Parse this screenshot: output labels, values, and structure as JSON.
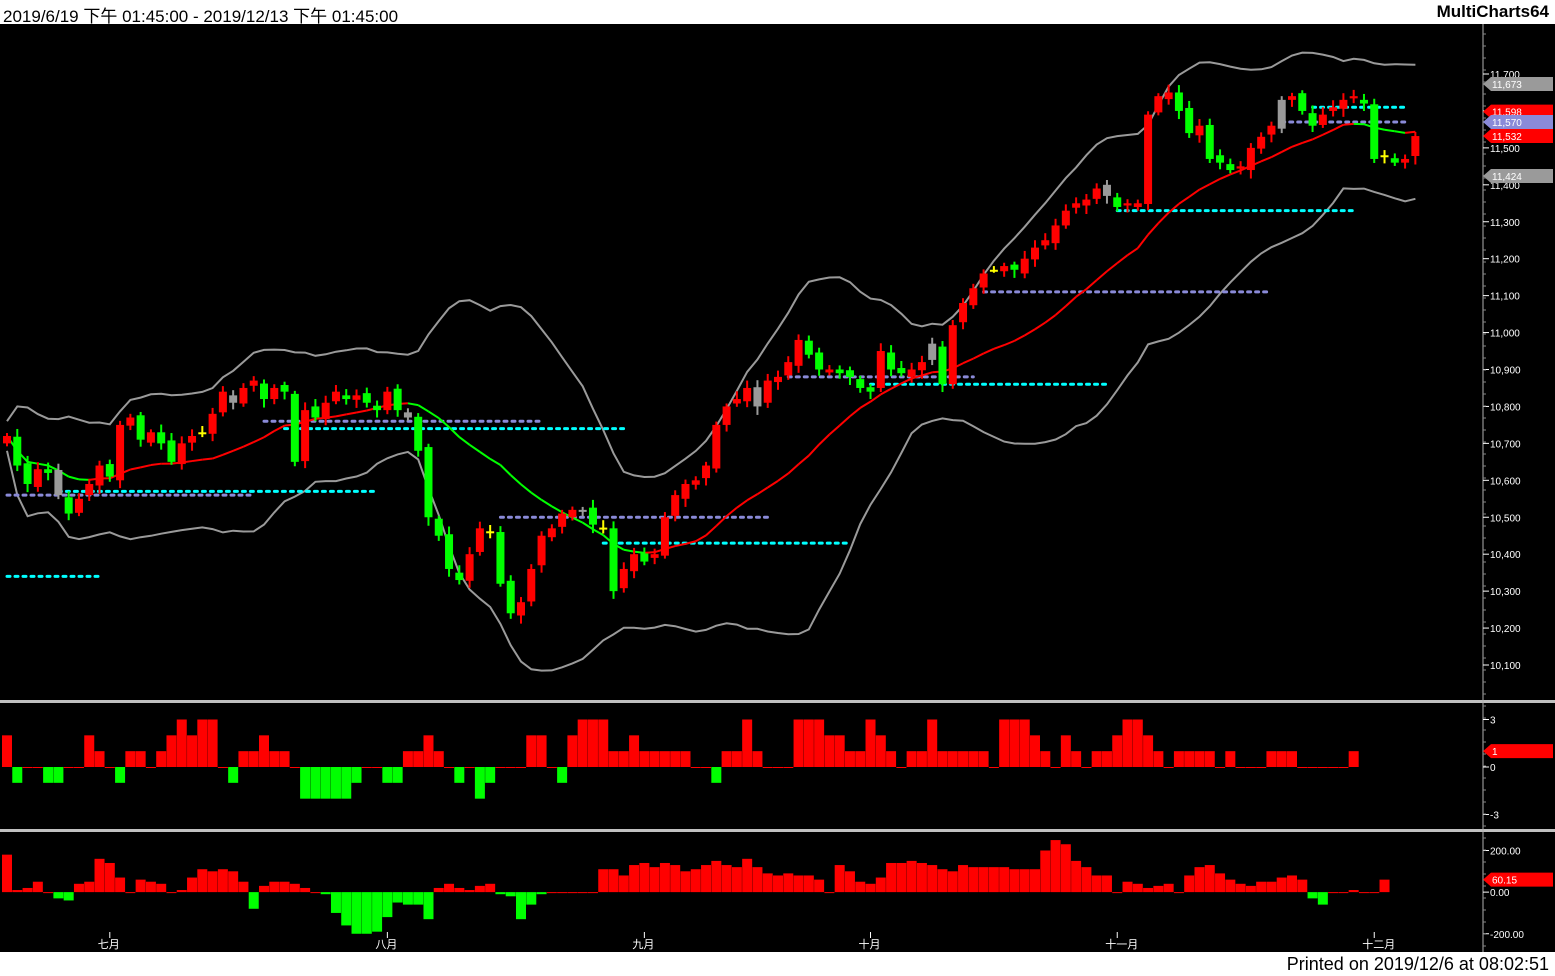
{
  "window": {
    "date_range": "2019/6/19 下午 01:45:00 - 2019/12/13 下午 01:45:00",
    "app_name": "MultiCharts64",
    "printed": "Printed on 2019/12/6 at 08:02:51"
  },
  "colors": {
    "background": "#000000",
    "up_candle": "#ff0000",
    "down_candle": "#00ff00",
    "neutral_candle": "#ffff00",
    "gray_candle": "#9a9a9a",
    "bollinger": "#9a9a9a",
    "moving_average_up": "#ff0000",
    "moving_average_down": "#00ff00",
    "support_dots": "#00ffff",
    "resistance_dots": "#8a8ad8"
  },
  "chart_data": [
    {
      "type": "candlestick",
      "x_months": [
        "七月",
        "八月",
        "九月",
        "十月",
        "十一月",
        "十二月"
      ],
      "y_ticks": [
        "11,700",
        "11,600",
        "11,500",
        "11,400",
        "11,300",
        "11,200",
        "11,100",
        "11,000",
        "10,900",
        "10,800",
        "10,700",
        "10,600",
        "10,500",
        "10,400",
        "10,300",
        "10,200",
        "10,100"
      ],
      "ylim": [
        10060,
        11800
      ],
      "price_flags": [
        {
          "value": "11,673",
          "price": 11673,
          "color": "#9a9a9a"
        },
        {
          "value": "11,598",
          "price": 11598,
          "color": "#ff0000"
        },
        {
          "value": "11,570",
          "price": 11570,
          "color": "#8a8ad8"
        },
        {
          "value": "11,532",
          "price": 11532,
          "color": "#ff0000"
        },
        {
          "value": "11,424",
          "price": 11424,
          "color": "#9a9a9a"
        }
      ],
      "closes": [
        10720,
        10640,
        10590,
        10630,
        10620,
        10560,
        10510,
        10550,
        10590,
        10640,
        10610,
        10750,
        10770,
        10710,
        10730,
        10700,
        10650,
        10700,
        10720,
        10730,
        10780,
        10840,
        10810,
        10850,
        10870,
        10820,
        10850,
        10840,
        10650,
        10790,
        10770,
        10810,
        10840,
        10820,
        10830,
        10810,
        10790,
        10840,
        10790,
        10770,
        10680,
        10500,
        10450,
        10360,
        10330,
        10400,
        10470,
        10460,
        10320,
        10240,
        10270,
        10360,
        10450,
        10470,
        10510,
        10520,
        10520,
        10480,
        10470,
        10300,
        10360,
        10400,
        10380,
        10400,
        10500,
        10560,
        10590,
        10600,
        10640,
        10750,
        10800,
        10820,
        10850,
        10800,
        10870,
        10880,
        10920,
        10980,
        10940,
        10900,
        10900,
        10890,
        10880,
        10850,
        10840,
        10950,
        10900,
        10890,
        10900,
        10920,
        10970,
        10860,
        11020,
        11080,
        11120,
        11160,
        11170,
        11180,
        11170,
        11200,
        11230,
        11250,
        11290,
        11330,
        11350,
        11360,
        11390,
        11370,
        11340,
        11350,
        11350,
        11590,
        11640,
        11650,
        11600,
        11540,
        11560,
        11470,
        11460,
        11440,
        11450,
        11500,
        11530,
        11560,
        11630,
        11640,
        11600,
        11560,
        11590,
        11610,
        11630,
        11640,
        11620,
        11470,
        11480,
        11460,
        11470,
        11532
      ],
      "indicators": [
        "Bollinger Bands",
        "Moving Average",
        "Support dots",
        "Resistance dots"
      ]
    },
    {
      "type": "bar",
      "name": "momentum",
      "y_ticks": [
        "3",
        "0",
        "-3"
      ],
      "ylim": [
        -3.6,
        3.6
      ],
      "current_value": "1",
      "values": [
        2,
        -1,
        0,
        0,
        -1,
        -1,
        0,
        0,
        2,
        1,
        0,
        -1,
        1,
        1,
        0,
        1,
        2,
        3,
        2,
        3,
        3,
        0,
        -1,
        1,
        1,
        2,
        1,
        1,
        0,
        -1,
        -2,
        -2,
        -2,
        -2,
        -1,
        0,
        0,
        -1,
        0,
        1,
        1,
        2,
        1,
        0,
        -1,
        0,
        -2,
        -1,
        0,
        0,
        0,
        2,
        2,
        0,
        -1,
        2,
        3,
        3,
        3,
        2,
        1,
        2,
        1,
        1,
        1,
        1,
        1,
        0,
        2,
        0,
        -1,
        1,
        1,
        3,
        0,
        0,
        0,
        0,
        3,
        3,
        3,
        2,
        2,
        1,
        1,
        3,
        2,
        1,
        0,
        1,
        1,
        3,
        1,
        1,
        1,
        1,
        1,
        0,
        3,
        3,
        3,
        2,
        1,
        0,
        2,
        1,
        0,
        1,
        1,
        2,
        3,
        3,
        2,
        1,
        0,
        1,
        1,
        1,
        1,
        0,
        1,
        0,
        0,
        0,
        1,
        1,
        1,
        0,
        0,
        0,
        0,
        1
      ],
      "data_values": [
        2,
        -1,
        0,
        0,
        -1,
        -1,
        0,
        0,
        2,
        1,
        0,
        -1,
        1,
        1,
        0,
        1,
        2,
        3,
        2,
        3,
        3,
        0,
        -1,
        1,
        1,
        2,
        1,
        1,
        0,
        -2,
        -2,
        -2,
        -2,
        -2,
        -1,
        0,
        0,
        -1,
        -1,
        1,
        1,
        2,
        1,
        0,
        -1,
        0,
        -2,
        -1,
        0,
        0,
        0,
        2,
        2,
        0,
        -1,
        2,
        3,
        3,
        3,
        1,
        1,
        2,
        1,
        1,
        1,
        1,
        1,
        0,
        0,
        -1,
        1,
        1,
        3,
        1,
        0,
        0,
        0,
        3,
        3,
        3,
        2,
        2,
        1,
        1,
        3,
        2,
        1,
        0,
        1,
        1,
        3,
        1,
        1,
        1,
        1,
        1,
        0,
        3,
        3,
        3,
        2,
        1,
        0,
        2,
        1,
        0,
        1,
        1,
        2,
        3,
        3,
        2,
        1,
        0,
        1,
        1,
        1,
        1,
        0,
        1,
        0,
        0,
        0,
        1,
        1,
        1,
        0,
        0,
        0,
        0,
        0,
        1
      ]
    },
    {
      "type": "bar",
      "name": "oscillator",
      "y_ticks": [
        "200.00",
        "0.00",
        "-200.00"
      ],
      "ylim": [
        -230,
        260
      ],
      "current_value": "60.15",
      "values": [
        180,
        10,
        20,
        50,
        0,
        -30,
        -40,
        40,
        50,
        160,
        140,
        70,
        0,
        60,
        50,
        40,
        0,
        10,
        70,
        110,
        100,
        110,
        100,
        50,
        -80,
        30,
        50,
        50,
        40,
        20,
        0,
        -10,
        -100,
        -160,
        -200,
        -200,
        -190,
        -120,
        -50,
        -60,
        -60,
        -130,
        20,
        40,
        20,
        10,
        30,
        40,
        -10,
        -20,
        -130,
        -60,
        -10,
        0,
        0,
        0,
        0,
        0,
        110,
        110,
        80,
        130,
        140,
        120,
        140,
        130,
        100,
        110,
        130,
        150,
        130,
        120,
        160,
        120,
        90,
        80,
        90,
        80,
        80,
        60,
        0,
        130,
        100,
        50,
        40,
        70,
        140,
        140,
        150,
        140,
        130,
        110,
        100,
        130,
        120,
        120,
        120,
        120,
        110,
        110,
        110,
        200,
        250,
        230,
        150,
        120,
        80,
        80,
        0,
        50,
        40,
        20,
        30,
        40,
        0,
        80,
        120,
        130,
        90,
        60,
        40,
        30,
        50,
        50,
        70,
        80,
        60,
        -30,
        -60,
        0,
        0,
        10,
        0,
        0,
        60
      ]
    }
  ]
}
